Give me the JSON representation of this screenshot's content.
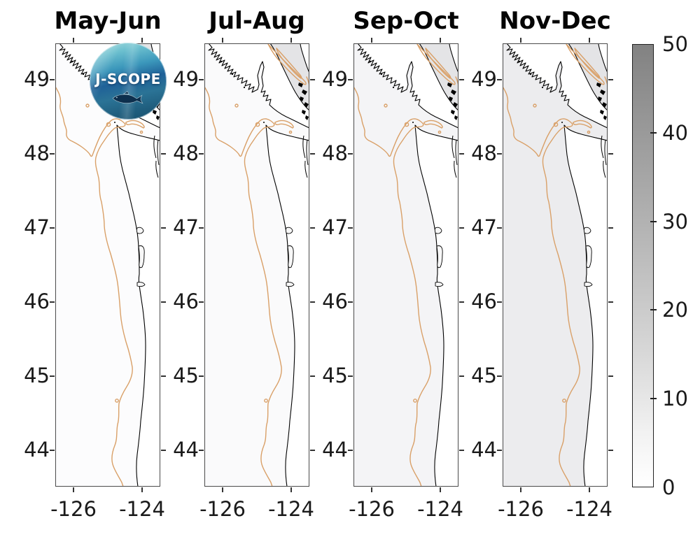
{
  "figure": {
    "panel_titles": [
      "May-Jun",
      "Jul-Aug",
      "Sep-Oct",
      "Nov-Dec"
    ],
    "lat_tick_labels": [
      "49",
      "48",
      "47",
      "46",
      "45",
      "44"
    ],
    "lon_tick_labels": [
      "-126",
      "-124"
    ],
    "colorbar_tick_labels": [
      "0",
      "10",
      "20",
      "30",
      "40",
      "50"
    ],
    "logo": {
      "label": "J-SCOPE"
    },
    "colors": {
      "background": "#ffffff",
      "coastline": "#000000",
      "isobath_contour": "#d9a068",
      "axis_frame": "#4a4a4a",
      "colorbar_top": "#828282",
      "colorbar_bottom": "#ffffff",
      "ocean_tint_by_panel": [
        "#fcfcfd",
        "#fafafb",
        "#f4f4f6",
        "#ececee"
      ]
    }
  },
  "chart_data": {
    "type": "heatmap",
    "title": "",
    "layout": "four map panels (seasonal bimonthly averages) sharing one vertical colorbar at right",
    "panels": [
      {
        "title": "May-Jun",
        "field_level_approx": "about 0-2 of 50 (near-white shading over shelf)"
      },
      {
        "title": "Jul-Aug",
        "field_level_approx": "about 0-2 of 50 (near-white shading over shelf)"
      },
      {
        "title": "Sep-Oct",
        "field_level_approx": "about 2-4 of 50 (very light gray shading)"
      },
      {
        "title": "Nov-Dec",
        "field_level_approx": "about 3-6 of 50 (light gray shading over shelf)"
      }
    ],
    "x_axis": {
      "label": "",
      "tick_values": [
        -126,
        -124
      ],
      "range": [
        -126.5,
        -123.5
      ],
      "meaning": "longitude (degrees)"
    },
    "y_axis": {
      "label": "",
      "tick_values": [
        49,
        48,
        47,
        46,
        45,
        44
      ],
      "range": [
        43.5,
        49.5
      ],
      "meaning": "latitude (degrees N)"
    },
    "colorbar": {
      "range": [
        0,
        50
      ],
      "tick_values": [
        0,
        10,
        20,
        30,
        40,
        50
      ],
      "colormap": "white (0) to dark gray (50)",
      "position": "right"
    },
    "overlays": [
      "black coastline",
      "tan shelf-break isobath contour with Juan de Fuca canyon hook and small closed bank contours"
    ],
    "region": "NE Pacific coast: Vancouver Island, Strait of Juan de Fuca, Strait of Georgia, Washington and Oregon coasts",
    "grid": false,
    "legend": "none (colorbar only)",
    "branding": "J-SCOPE circular ocean logo overlaid on first panel"
  }
}
